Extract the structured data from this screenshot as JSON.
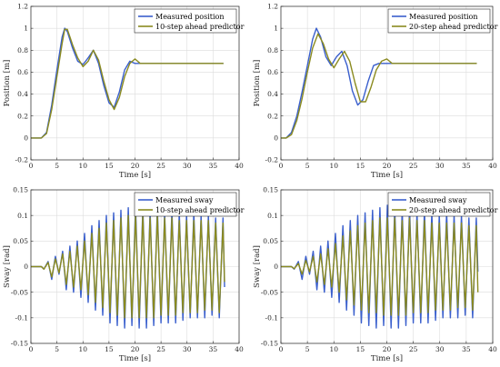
{
  "colors": {
    "measured": "#3a5fcd",
    "predicted": "#8a8a1f",
    "grid": "#dcdcdc",
    "axis": "#262626"
  },
  "chart_data": [
    {
      "type": "line",
      "xlabel": "Time [s]",
      "ylabel": "Position [m]",
      "xlim": [
        0,
        40
      ],
      "ylim": [
        -0.2,
        1.2
      ],
      "xticks": [
        "0",
        "5",
        "10",
        "15",
        "20",
        "25",
        "30",
        "35",
        "40"
      ],
      "yticks": [
        "-0.2",
        "0",
        "0.2",
        "0.4",
        "0.6",
        "0.8",
        "1",
        "1.2"
      ],
      "grid": true,
      "legend_position": "top-right",
      "series": [
        {
          "name": "Measured position",
          "x": [
            0,
            2,
            3,
            4,
            5,
            6,
            6.5,
            7,
            8,
            9,
            10,
            11,
            12,
            13,
            14,
            15,
            16,
            17,
            18,
            19,
            20,
            21,
            37
          ],
          "y": [
            0,
            0,
            0.05,
            0.3,
            0.62,
            0.92,
            1.0,
            0.97,
            0.82,
            0.7,
            0.67,
            0.73,
            0.8,
            0.68,
            0.48,
            0.32,
            0.28,
            0.42,
            0.62,
            0.7,
            0.68,
            0.68,
            0.68
          ]
        },
        {
          "name": "10-step ahead predictor",
          "x": [
            0,
            2,
            3,
            4,
            5,
            6,
            6.5,
            7,
            8,
            9,
            10,
            11,
            12,
            13,
            14,
            15,
            16,
            17,
            18,
            19,
            20,
            21,
            37
          ],
          "y": [
            0,
            0,
            0.04,
            0.26,
            0.56,
            0.86,
            0.99,
            0.99,
            0.85,
            0.73,
            0.65,
            0.7,
            0.8,
            0.71,
            0.52,
            0.35,
            0.26,
            0.37,
            0.56,
            0.68,
            0.72,
            0.68,
            0.68
          ]
        }
      ]
    },
    {
      "type": "line",
      "xlabel": "Time [s]",
      "ylabel": "Position [m]",
      "xlim": [
        0,
        40
      ],
      "ylim": [
        -0.2,
        1.2
      ],
      "xticks": [
        "0",
        "5",
        "10",
        "15",
        "20",
        "25",
        "30",
        "35",
        "40"
      ],
      "yticks": [
        "-0.2",
        "0",
        "0.2",
        "0.4",
        "0.6",
        "0.8",
        "1",
        "1.2"
      ],
      "grid": true,
      "legend_position": "top-right",
      "series": [
        {
          "name": "Measured position",
          "x": [
            0,
            1,
            2,
            3,
            4,
            5,
            6,
            6.7,
            7.5,
            8.5,
            9.5,
            10.5,
            11.5,
            12.5,
            13.5,
            14.5,
            15.5,
            16.5,
            17.5,
            18.5,
            20,
            21,
            37
          ],
          "y": [
            0,
            0,
            0.05,
            0.2,
            0.42,
            0.66,
            0.9,
            1.0,
            0.92,
            0.74,
            0.66,
            0.74,
            0.79,
            0.66,
            0.43,
            0.3,
            0.35,
            0.52,
            0.66,
            0.68,
            0.68,
            0.68,
            0.68
          ]
        },
        {
          "name": "20-step ahead predictor",
          "x": [
            0,
            1,
            2,
            3,
            4,
            5,
            6,
            7,
            8,
            9,
            10,
            11,
            12,
            13,
            14,
            15,
            16,
            17,
            18,
            19,
            20,
            21,
            37
          ],
          "y": [
            0,
            0,
            0.03,
            0.16,
            0.36,
            0.6,
            0.82,
            0.95,
            0.86,
            0.72,
            0.64,
            0.72,
            0.79,
            0.7,
            0.5,
            0.33,
            0.33,
            0.46,
            0.62,
            0.7,
            0.72,
            0.68,
            0.68
          ]
        }
      ]
    },
    {
      "type": "line",
      "xlabel": "Time [s]",
      "ylabel": "Sway [rad]",
      "xlim": [
        0,
        40
      ],
      "ylim": [
        -0.15,
        0.15
      ],
      "xticks": [
        "0",
        "5",
        "10",
        "15",
        "20",
        "25",
        "30",
        "35",
        "40"
      ],
      "yticks": [
        "-0.15",
        "-0.1",
        "-0.05",
        "0",
        "0.05",
        "0.1",
        "0.15"
      ],
      "grid": true,
      "legend_position": "top-right",
      "series": [
        {
          "name": "Measured sway",
          "x": [
            0,
            2,
            2.5,
            3.3,
            4,
            4.7,
            5.4,
            6.1,
            6.8,
            7.5,
            8.2,
            8.9,
            9.6,
            10.3,
            11,
            11.7,
            12.4,
            13.1,
            13.8,
            14.5,
            15.2,
            15.9,
            16.6,
            17.3,
            18,
            18.7,
            19.4,
            20.1,
            20.8,
            21.5,
            22.2,
            22.9,
            23.6,
            24.3,
            25,
            25.7,
            26.4,
            27.1,
            27.8,
            28.5,
            29.2,
            29.9,
            30.6,
            31.3,
            32,
            32.7,
            33.4,
            34.1,
            34.8,
            35.5,
            36.2,
            36.9,
            37.2
          ],
          "y": [
            0,
            0,
            -0.005,
            0.01,
            -0.025,
            0.02,
            -0.015,
            0.03,
            -0.045,
            0.04,
            -0.05,
            0.05,
            -0.06,
            0.065,
            -0.07,
            0.08,
            -0.085,
            0.09,
            -0.095,
            0.1,
            -0.11,
            0.105,
            -0.115,
            0.11,
            -0.12,
            0.115,
            -0.115,
            0.12,
            -0.12,
            0.115,
            -0.12,
            0.11,
            -0.115,
            0.115,
            -0.11,
            0.105,
            -0.11,
            0.11,
            -0.11,
            0.105,
            -0.105,
            0.1,
            -0.1,
            0.105,
            -0.1,
            0.1,
            -0.1,
            0.1,
            -0.095,
            0.095,
            -0.1,
            0.095,
            -0.04
          ]
        },
        {
          "name": "10-step ahead predictor",
          "x": [
            0,
            2,
            2.5,
            3.3,
            4,
            4.7,
            5.4,
            6.1,
            6.8,
            7.5,
            8.2,
            8.9,
            9.6,
            10.3,
            11,
            11.7,
            12.4,
            13.1,
            13.8,
            14.5,
            15.2,
            15.9,
            16.6,
            17.3,
            18,
            18.7,
            19.4,
            20.1,
            20.8,
            21.5,
            22.2,
            22.9,
            23.6,
            24.3,
            25,
            25.7,
            26.4,
            27.1,
            27.8,
            28.5,
            29.2,
            29.9,
            30.6,
            31.3,
            32,
            32.7,
            33.4,
            34.1,
            34.8,
            35.5,
            36.2,
            36.9,
            37.2
          ],
          "y": [
            0,
            0,
            -0.005,
            0.008,
            -0.02,
            0.015,
            -0.012,
            0.025,
            -0.035,
            0.03,
            -0.04,
            0.04,
            -0.045,
            0.05,
            -0.055,
            0.065,
            -0.07,
            0.075,
            -0.08,
            0.085,
            -0.09,
            0.09,
            -0.095,
            0.095,
            -0.1,
            0.1,
            -0.1,
            0.1,
            -0.1,
            0.1,
            -0.1,
            0.095,
            -0.1,
            0.1,
            -0.095,
            0.095,
            -0.095,
            0.095,
            -0.095,
            0.09,
            -0.09,
            0.09,
            -0.09,
            0.09,
            -0.09,
            0.09,
            -0.085,
            0.09,
            -0.085,
            0.085,
            -0.09,
            0.085,
            -0.03
          ]
        }
      ]
    },
    {
      "type": "line",
      "xlabel": "Time [s]",
      "ylabel": "Sway [rad]",
      "xlim": [
        0,
        40
      ],
      "ylim": [
        -0.15,
        0.15
      ],
      "xticks": [
        "0",
        "5",
        "10",
        "15",
        "20",
        "25",
        "30",
        "35",
        "40"
      ],
      "yticks": [
        "-0.15",
        "-0.1",
        "-0.05",
        "0",
        "0.05",
        "0.1",
        "0.15"
      ],
      "grid": true,
      "legend_position": "top-right",
      "series": [
        {
          "name": "Measured sway",
          "x": [
            0,
            2,
            2.5,
            3.3,
            4,
            4.7,
            5.4,
            6.1,
            6.8,
            7.5,
            8.2,
            8.9,
            9.6,
            10.3,
            11,
            11.7,
            12.4,
            13.1,
            13.8,
            14.5,
            15.2,
            15.9,
            16.6,
            17.3,
            18,
            18.7,
            19.4,
            20.1,
            20.8,
            21.5,
            22.2,
            22.9,
            23.6,
            24.3,
            25,
            25.7,
            26.4,
            27.1,
            27.8,
            28.5,
            29.2,
            29.9,
            30.6,
            31.3,
            32,
            32.7,
            33.4,
            34.1,
            34.8,
            35.5,
            36.2,
            36.9,
            37.2
          ],
          "y": [
            0,
            0,
            -0.005,
            0.01,
            -0.025,
            0.02,
            -0.015,
            0.03,
            -0.045,
            0.04,
            -0.05,
            0.05,
            -0.06,
            0.065,
            -0.07,
            0.08,
            -0.085,
            0.09,
            -0.095,
            0.1,
            -0.11,
            0.105,
            -0.115,
            0.11,
            -0.12,
            0.115,
            -0.115,
            0.12,
            -0.12,
            0.115,
            -0.12,
            0.11,
            -0.115,
            0.115,
            -0.11,
            0.105,
            -0.11,
            0.11,
            -0.11,
            0.105,
            -0.105,
            0.1,
            -0.1,
            0.105,
            -0.1,
            0.1,
            -0.1,
            0.1,
            -0.095,
            0.095,
            -0.1,
            0.095,
            -0.01
          ]
        },
        {
          "name": "20-step ahead predictor",
          "x": [
            0,
            2,
            2.5,
            3.3,
            4,
            4.7,
            5.4,
            6.1,
            6.8,
            7.5,
            8.2,
            8.9,
            9.6,
            10.3,
            11,
            11.7,
            12.4,
            13.1,
            13.8,
            14.5,
            15.2,
            15.9,
            16.6,
            17.3,
            18,
            18.7,
            19.4,
            20.1,
            20.8,
            21.5,
            22.2,
            22.9,
            23.6,
            24.3,
            25,
            25.7,
            26.4,
            27.1,
            27.8,
            28.5,
            29.2,
            29.9,
            30.6,
            31.3,
            32,
            32.7,
            33.4,
            34.1,
            34.8,
            35.5,
            36.2,
            36.9,
            37.2
          ],
          "y": [
            0,
            0,
            -0.004,
            0.006,
            -0.015,
            0.012,
            -0.01,
            0.02,
            -0.03,
            0.025,
            -0.035,
            0.035,
            -0.04,
            0.045,
            -0.05,
            0.06,
            -0.065,
            0.07,
            -0.075,
            0.08,
            -0.085,
            0.085,
            -0.09,
            0.09,
            -0.09,
            0.095,
            -0.095,
            0.095,
            -0.095,
            0.095,
            -0.095,
            0.09,
            -0.095,
            0.095,
            -0.09,
            0.09,
            -0.09,
            0.09,
            -0.09,
            0.085,
            -0.085,
            0.085,
            -0.085,
            0.085,
            -0.085,
            0.085,
            -0.08,
            0.085,
            -0.08,
            0.08,
            -0.085,
            0.08,
            -0.05
          ]
        }
      ]
    }
  ]
}
